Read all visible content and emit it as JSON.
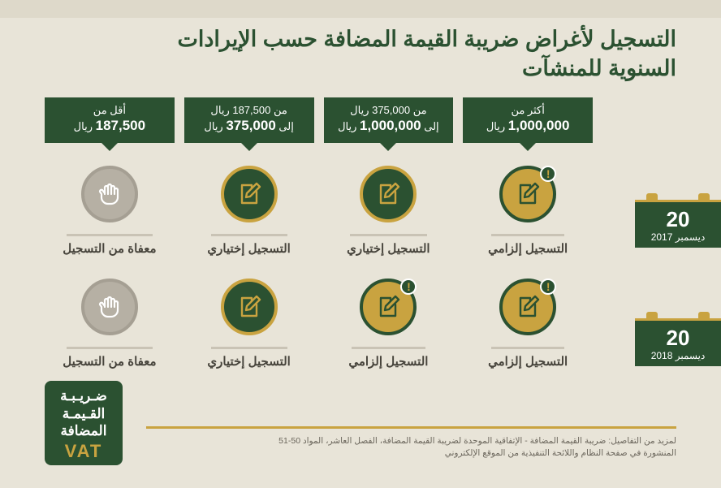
{
  "title_line1": "التسجيل لأغراض ضريبة القيمة المضافة حسب الإيرادات",
  "title_line2": "السنوية للمنشآت",
  "brackets": [
    {
      "top": "أقل من",
      "amount": "187,500",
      "unit": "ريال"
    },
    {
      "top": "من 187,500 ريال",
      "amount": "375,000",
      "prefix": "إلى",
      "unit": "ريال"
    },
    {
      "top": "من 375,000 ريال",
      "amount": "1,000,000",
      "prefix": "إلى",
      "unit": "ريال"
    },
    {
      "top": "أكثر من",
      "amount": "1,000,000",
      "unit": "ريال"
    }
  ],
  "dates": [
    {
      "big": "20",
      "small": "ديسمبر 2017"
    },
    {
      "big": "20",
      "small": "ديسمبر 2018"
    }
  ],
  "labels": {
    "exempt": "معفاة من التسجيل",
    "optional": "التسجيل إختياري",
    "mandatory": "التسجيل إلزامي"
  },
  "cells": [
    [
      {
        "icon": "hand",
        "style": "grey",
        "badge": false,
        "label_key": "exempt"
      },
      {
        "icon": "pen",
        "style": "green",
        "badge": false,
        "label_key": "optional"
      },
      {
        "icon": "pen",
        "style": "green",
        "badge": false,
        "label_key": "optional"
      },
      {
        "icon": "pen",
        "style": "gold",
        "badge": true,
        "label_key": "mandatory"
      }
    ],
    [
      {
        "icon": "hand",
        "style": "grey",
        "badge": false,
        "label_key": "exempt"
      },
      {
        "icon": "pen",
        "style": "green",
        "badge": false,
        "label_key": "optional"
      },
      {
        "icon": "pen",
        "style": "gold",
        "badge": true,
        "label_key": "mandatory"
      },
      {
        "icon": "pen",
        "style": "gold",
        "badge": true,
        "label_key": "mandatory"
      }
    ]
  ],
  "vat_logo": {
    "ar1": "ضـريـبـة",
    "ar2": "القـيمـة",
    "ar3": "المضافة",
    "en": "VAT"
  },
  "footer1": "لمزيد من التفاصيل: ضريبة القيمة المضافة - الإتفاقية الموحدة لضريبة القيمة المضافة، الفصل العاشر، المواد 50-51",
  "footer2": "المنشورة في صفحة النظام واللائحة التنفيذية من الموقع الإلكتروني",
  "palette": {
    "background": "#e8e4d8",
    "green": "#2b5131",
    "gold": "#c9a340",
    "grey": "#b6b0a4"
  }
}
